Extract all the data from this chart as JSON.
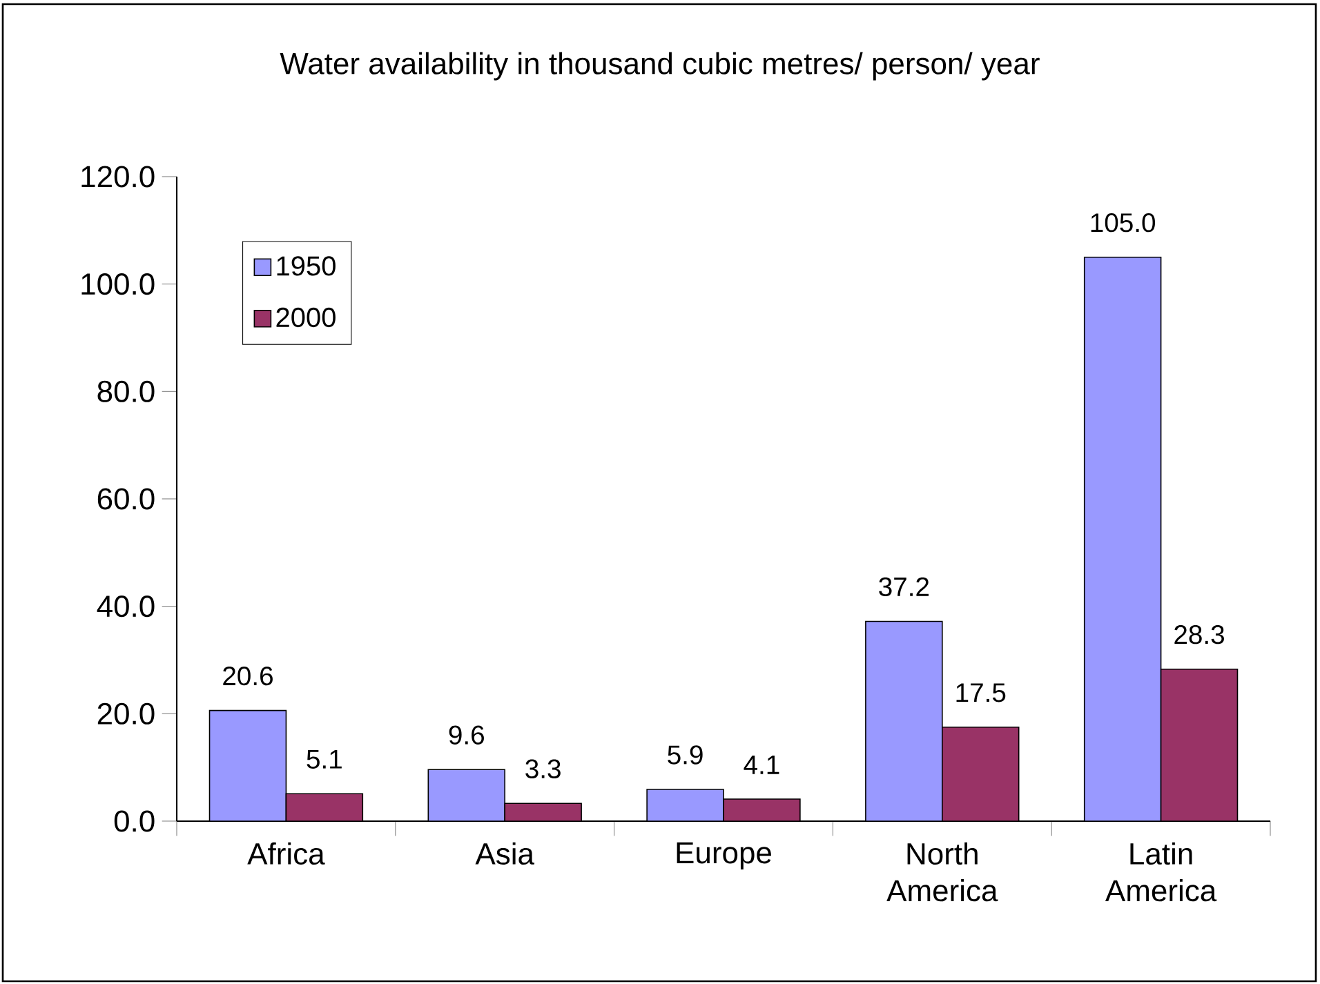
{
  "chart_data": {
    "type": "bar",
    "title": "Water availability in thousand cubic metres/ person/ year",
    "categories": [
      "Africa",
      "Asia",
      "Europe",
      "North America",
      "Latin America"
    ],
    "series": [
      {
        "name": "1950",
        "color": "#9999ff",
        "values": [
          20.6,
          9.6,
          5.9,
          37.2,
          105.0
        ],
        "value_labels": [
          "20.6",
          "9.6",
          "5.9",
          "37.2",
          "105.0"
        ]
      },
      {
        "name": "2000",
        "color": "#993366",
        "values": [
          5.1,
          3.3,
          4.1,
          17.5,
          28.3
        ],
        "value_labels": [
          "5.1",
          "3.3",
          "4.1",
          "17.5",
          "28.3"
        ]
      }
    ],
    "ylim": [
      0,
      120
    ],
    "yticks": [
      {
        "value": 0,
        "label": "0.0"
      },
      {
        "value": 20,
        "label": "20.0"
      },
      {
        "value": 40,
        "label": "40.0"
      },
      {
        "value": 60,
        "label": "60.0"
      },
      {
        "value": 80,
        "label": "80.0"
      },
      {
        "value": 100,
        "label": "100.0"
      },
      {
        "value": 120,
        "label": "120.0"
      }
    ],
    "legend": "top left"
  }
}
